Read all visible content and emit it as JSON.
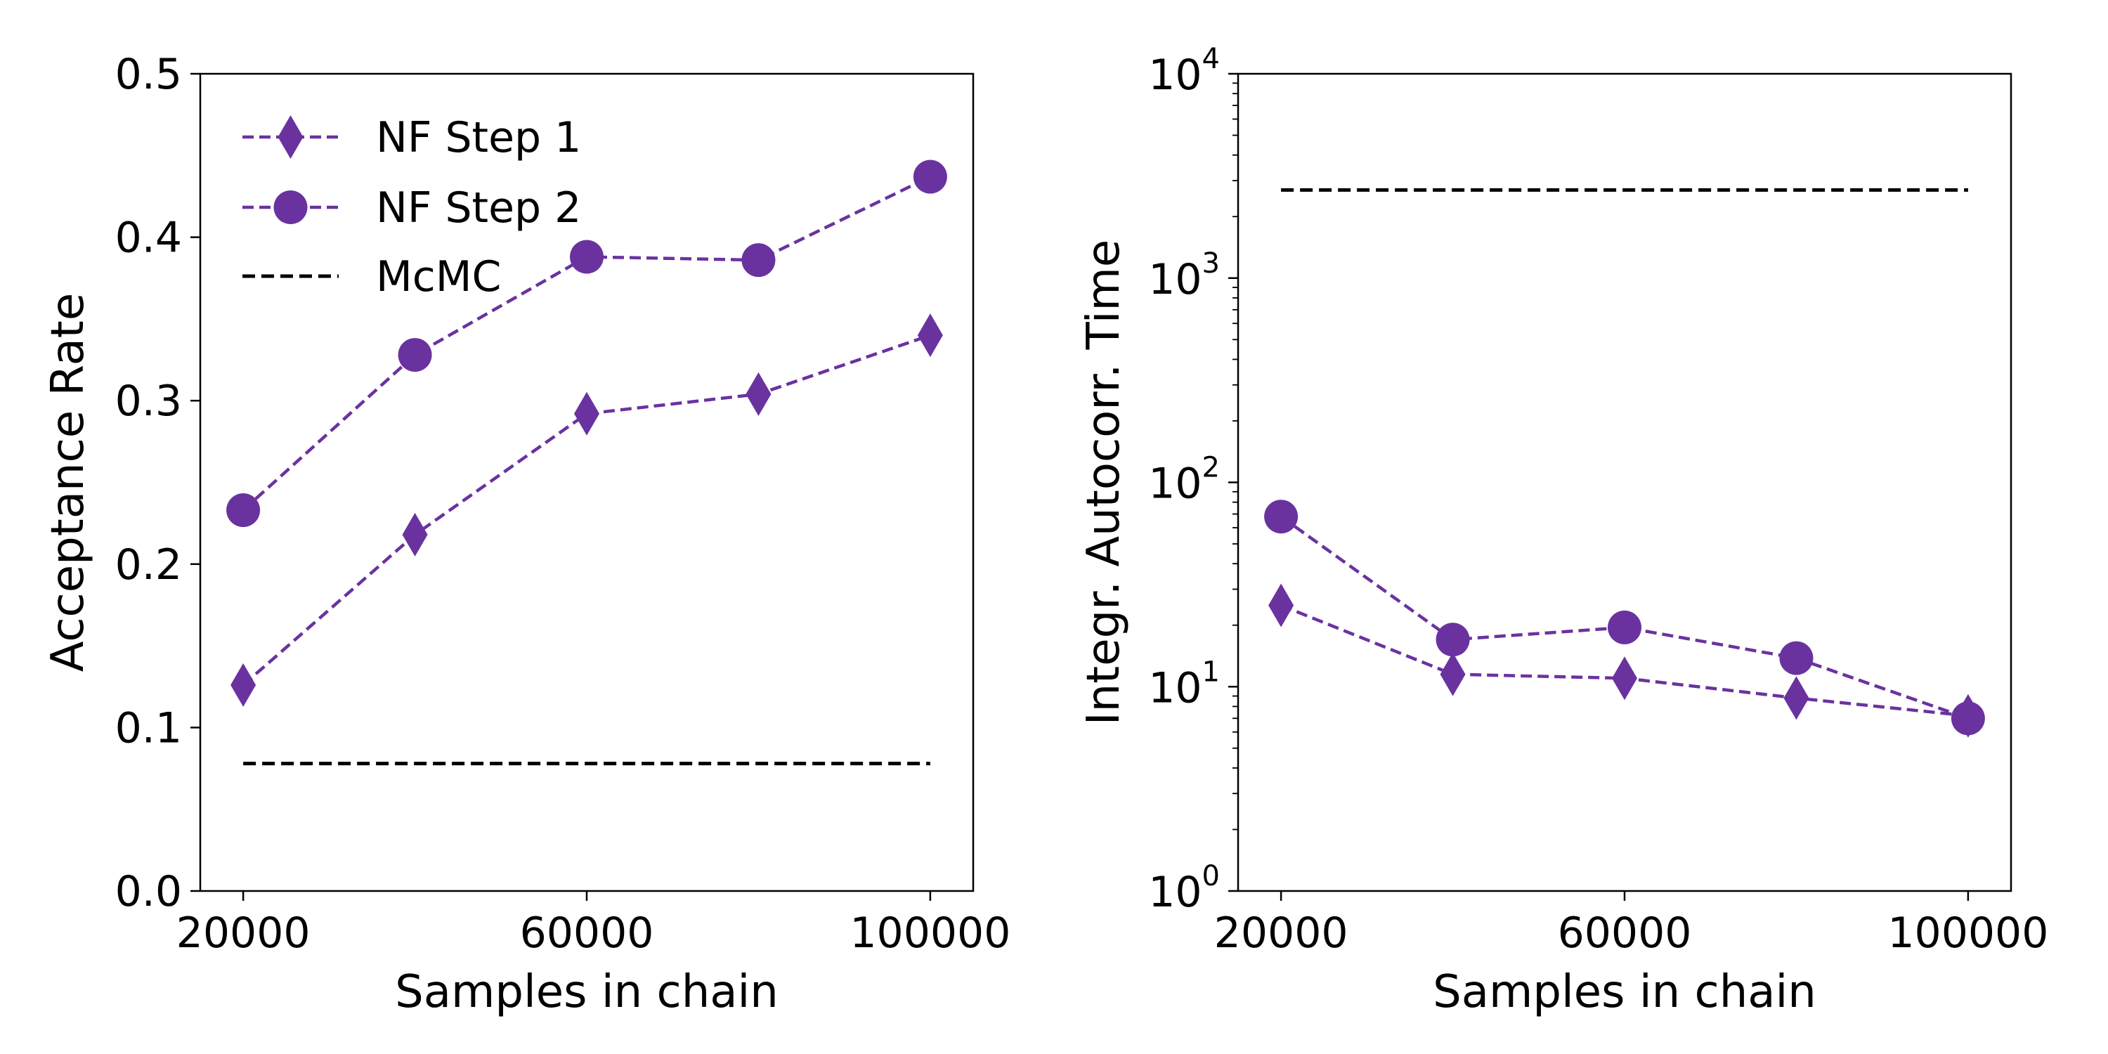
{
  "colors": {
    "nf": "#6a329f",
    "mcmc": "#000000",
    "axes": "#000000",
    "background": "#ffffff"
  },
  "chart_data": [
    {
      "type": "line",
      "xlabel": "Samples in chain",
      "ylabel": "Acceptance Rate",
      "xlim": [
        15000,
        105000
      ],
      "ylim": [
        0.0,
        0.5
      ],
      "xticks": [
        20000,
        60000,
        100000
      ],
      "xtick_labels": [
        "20000",
        "60000",
        "100000"
      ],
      "yticks": [
        0.0,
        0.1,
        0.2,
        0.3,
        0.4,
        0.5
      ],
      "ytick_labels": [
        "0.0",
        "0.1",
        "0.2",
        "0.3",
        "0.4",
        "0.5"
      ],
      "y_scale": "linear",
      "grid": false,
      "legend_position": "upper-left",
      "legend": [
        "NF Step 1",
        "NF Step 2",
        "McMC"
      ],
      "x": [
        20000,
        40000,
        60000,
        80000,
        100000
      ],
      "series": [
        {
          "name": "NF Step 1",
          "marker": "diamond",
          "style": "dashed",
          "values": [
            0.126,
            0.218,
            0.292,
            0.304,
            0.34
          ]
        },
        {
          "name": "NF Step 2",
          "marker": "circle",
          "style": "dashed",
          "values": [
            0.233,
            0.328,
            0.388,
            0.386,
            0.437
          ]
        },
        {
          "name": "McMC",
          "marker": "none",
          "style": "dashed",
          "x_range": [
            20000,
            100000
          ],
          "value": 0.078
        }
      ]
    },
    {
      "type": "line",
      "xlabel": "Samples in chain",
      "ylabel": "Integr. Autocorr. Time",
      "xlim": [
        15000,
        105000
      ],
      "ylim": [
        1,
        10000
      ],
      "xticks": [
        20000,
        60000,
        100000
      ],
      "xtick_labels": [
        "20000",
        "60000",
        "100000"
      ],
      "yticks": [
        1,
        10,
        100,
        1000,
        10000
      ],
      "ytick_labels": [
        {
          "base": "10",
          "exp": "0"
        },
        {
          "base": "10",
          "exp": "1"
        },
        {
          "base": "10",
          "exp": "2"
        },
        {
          "base": "10",
          "exp": "3"
        },
        {
          "base": "10",
          "exp": "4"
        }
      ],
      "y_scale": "log",
      "grid": false,
      "x": [
        20000,
        40000,
        60000,
        80000,
        100000
      ],
      "series": [
        {
          "name": "NF Step 1",
          "marker": "diamond",
          "style": "dashed",
          "values": [
            25,
            11.5,
            11,
            8.8,
            7.2
          ]
        },
        {
          "name": "NF Step 2",
          "marker": "circle",
          "style": "dashed",
          "values": [
            68,
            17,
            19.5,
            13.8,
            7.0
          ]
        },
        {
          "name": "McMC",
          "marker": "none",
          "style": "dashed",
          "x_range": [
            20000,
            100000
          ],
          "value": 2700
        }
      ]
    }
  ]
}
